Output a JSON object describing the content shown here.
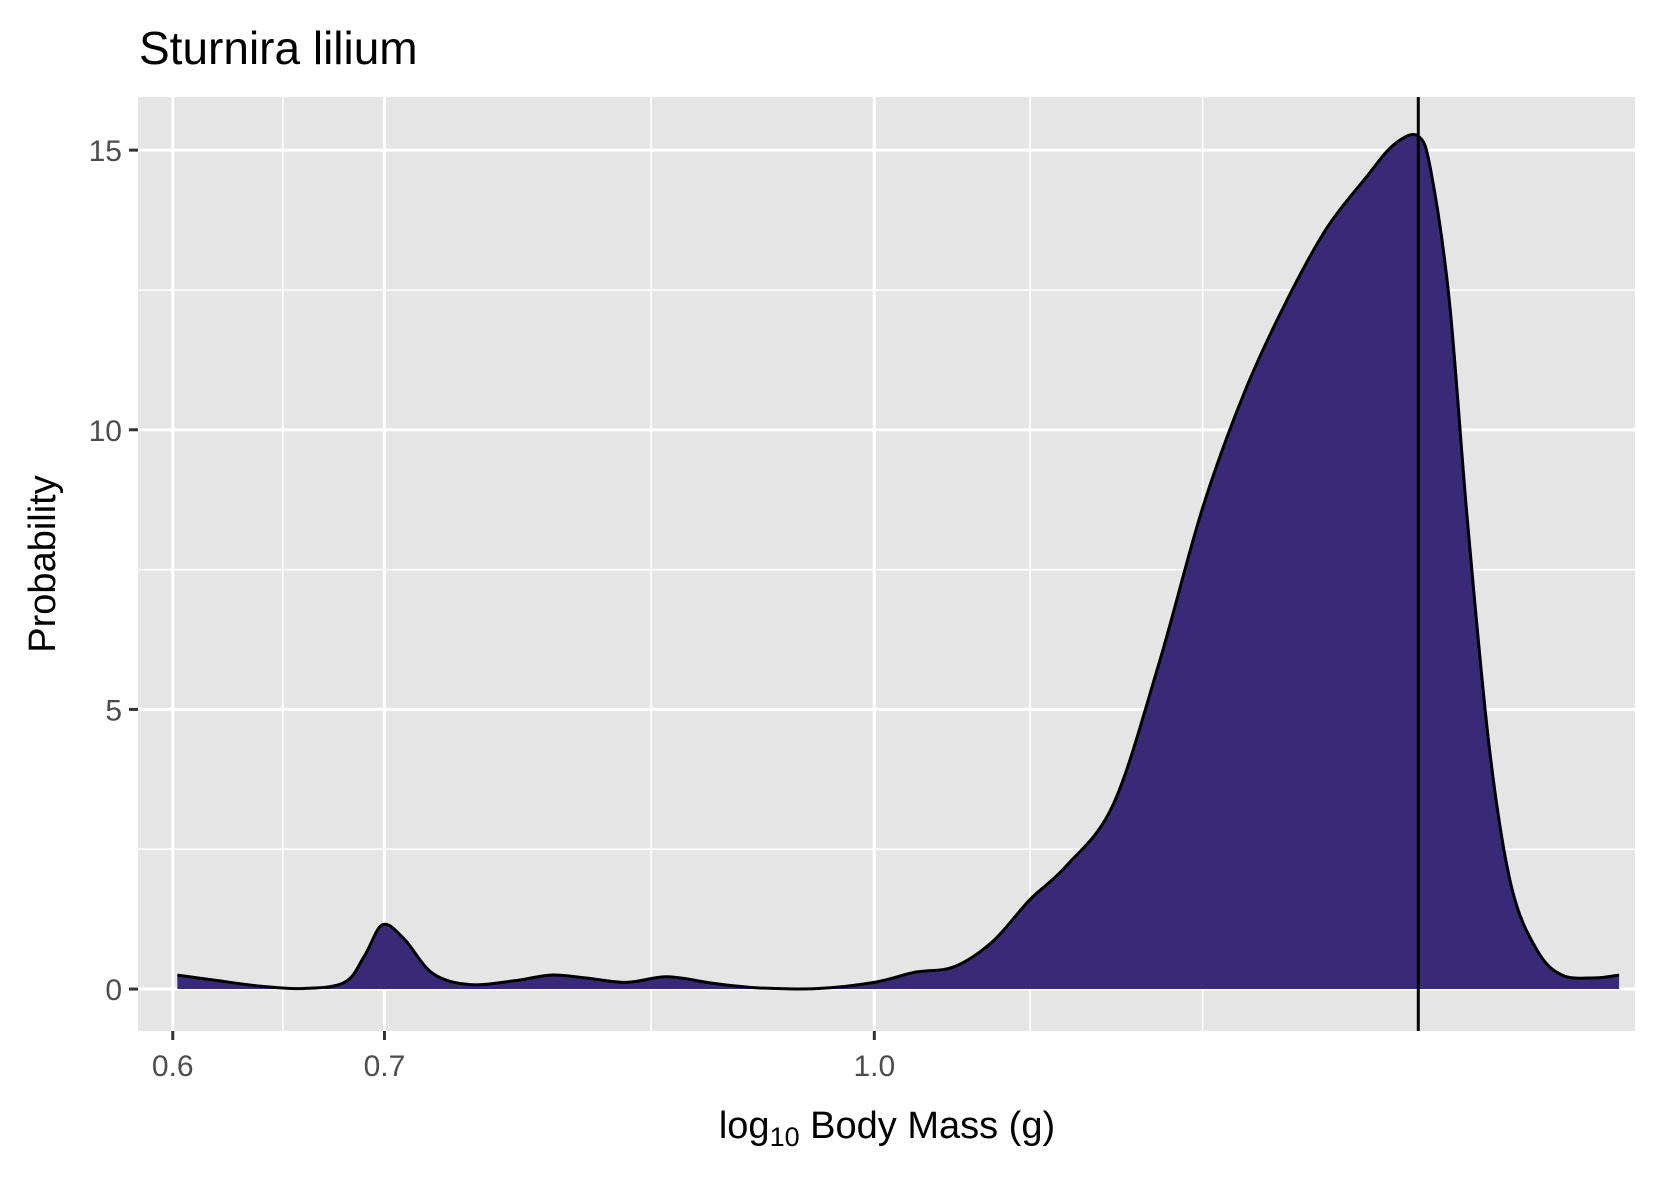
{
  "chart_data": {
    "type": "area",
    "title": "Sturnira lilium",
    "xlabel": {
      "prefix": "log",
      "subscript": "10",
      "suffix": " Body Mass (g)"
    },
    "ylabel": "Probability",
    "x_scale": "log",
    "xlim": [
      0.585,
      1.74
    ],
    "ylim": [
      -0.75,
      15.95
    ],
    "x_ticks": [
      {
        "value": 0.6,
        "label": "0.6"
      },
      {
        "value": 0.7,
        "label": "0.7"
      },
      {
        "value": 1.0,
        "label": "1.0"
      }
    ],
    "x_minor_gridlines": [
      0.65,
      0.85,
      1.12,
      1.27
    ],
    "y_ticks": [
      {
        "value": 0,
        "label": "0"
      },
      {
        "value": 5,
        "label": "5"
      },
      {
        "value": 10,
        "label": "10"
      },
      {
        "value": 15,
        "label": "15"
      }
    ],
    "y_minor_gridlines": [
      2.5,
      7.5,
      12.5
    ],
    "grid": true,
    "vline_x": 1.486,
    "colors": {
      "panel_background": "#E5E5E5",
      "grid": "#FFFFFF",
      "fill": "#382A77",
      "line": "#000000"
    },
    "series": [
      {
        "x": [
          0.602,
          0.62,
          0.64,
          0.66,
          0.68,
          0.69,
          0.699,
          0.71,
          0.725,
          0.745,
          0.77,
          0.79,
          0.81,
          0.835,
          0.86,
          0.89,
          0.92,
          0.96,
          1.0,
          1.03,
          1.06,
          1.09,
          1.12,
          1.15,
          1.19,
          1.23,
          1.27,
          1.31,
          1.35,
          1.39,
          1.43,
          1.46,
          1.486,
          1.5,
          1.52,
          1.54,
          1.565,
          1.59,
          1.62,
          1.65,
          1.69,
          1.72
        ],
        "y": [
          0.25,
          0.15,
          0.05,
          0.01,
          0.12,
          0.6,
          1.15,
          0.9,
          0.28,
          0.08,
          0.15,
          0.25,
          0.2,
          0.12,
          0.22,
          0.1,
          0.02,
          0.01,
          0.12,
          0.3,
          0.4,
          0.85,
          1.6,
          2.2,
          3.3,
          5.8,
          8.6,
          10.7,
          12.3,
          13.6,
          14.5,
          15.1,
          15.25,
          14.6,
          12.3,
          8.4,
          4.3,
          1.85,
          0.7,
          0.25,
          0.2,
          0.25
        ]
      }
    ]
  }
}
